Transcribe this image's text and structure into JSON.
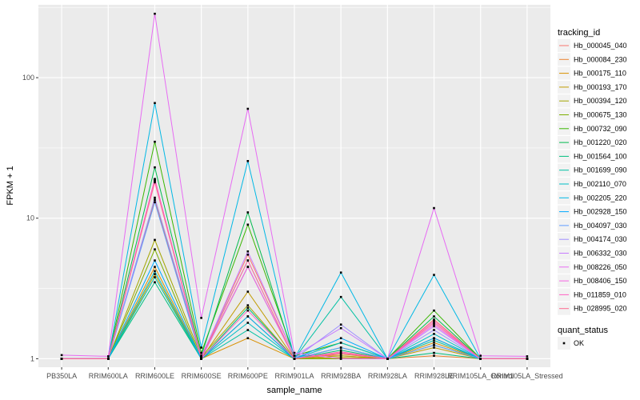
{
  "chart_data": {
    "type": "line",
    "title": "",
    "xlabel": "sample_name",
    "ylabel": "FPKM + 1",
    "y_scale": "log10",
    "ylim": [
      0.87,
      330
    ],
    "y_ticks": [
      1,
      10,
      100
    ],
    "y_tick_labels": [
      "1",
      "10",
      "100"
    ],
    "grid": true,
    "panel_background": "#ebebeb",
    "gridline_color": "#ffffff",
    "legend_position": "right",
    "categories": [
      "PB350LA",
      "RRIM600LA",
      "RRIM600LE",
      "RRIM600SE",
      "RRIM600PE",
      "RRIM901LA",
      "RRIM928BA",
      "RRIM928LA",
      "RRIM928LE",
      "RRIM105LA_Control",
      "RRIM105LA_Stressed"
    ],
    "legend_title": "tracking_id",
    "series": [
      {
        "name": "Hb_000045_040",
        "color": "#F8766D",
        "values": [
          1.0,
          1.0,
          18.5,
          1.03,
          5.5,
          1.05,
          1.05,
          1.0,
          1.9,
          1.0,
          1.0
        ]
      },
      {
        "name": "Hb_000084_230",
        "color": "#EA8331",
        "values": [
          1.0,
          1.0,
          13.5,
          1.02,
          4.5,
          1.0,
          1.08,
          1.0,
          1.05,
          1.0,
          1.0
        ]
      },
      {
        "name": "Hb_000175_110",
        "color": "#D89000",
        "values": [
          1.0,
          1.0,
          4.5,
          1.0,
          1.4,
          1.0,
          1.0,
          1.0,
          1.3,
          1.0,
          1.0
        ]
      },
      {
        "name": "Hb_000193_170",
        "color": "#C09B00",
        "values": [
          1.0,
          1.0,
          4.0,
          1.0,
          3.0,
          1.0,
          1.02,
          1.0,
          1.2,
          1.0,
          1.0
        ]
      },
      {
        "name": "Hb_000394_120",
        "color": "#A3A500",
        "values": [
          1.0,
          1.0,
          7.0,
          1.03,
          2.4,
          1.0,
          1.05,
          1.0,
          1.4,
          1.0,
          1.0
        ]
      },
      {
        "name": "Hb_000675_130",
        "color": "#7CAE00",
        "values": [
          1.0,
          1.0,
          6.0,
          1.0,
          2.0,
          1.0,
          1.0,
          1.0,
          1.25,
          1.0,
          1.0
        ]
      },
      {
        "name": "Hb_000732_090",
        "color": "#39B600",
        "values": [
          1.0,
          1.0,
          35.0,
          1.1,
          9.0,
          1.05,
          1.3,
          1.0,
          2.2,
          1.0,
          1.0
        ]
      },
      {
        "name": "Hb_001220_020",
        "color": "#00BB4E",
        "values": [
          1.0,
          1.0,
          23.0,
          1.05,
          11.0,
          1.0,
          1.2,
          1.0,
          2.0,
          1.0,
          1.0
        ]
      },
      {
        "name": "Hb_001564_100",
        "color": "#00BF7D",
        "values": [
          1.0,
          1.0,
          3.5,
          1.0,
          2.3,
          1.0,
          1.15,
          1.0,
          1.1,
          1.0,
          1.0
        ]
      },
      {
        "name": "Hb_001699_090",
        "color": "#00C1A3",
        "values": [
          1.0,
          1.0,
          3.8,
          1.0,
          1.6,
          1.0,
          2.75,
          1.0,
          1.35,
          1.0,
          1.0
        ]
      },
      {
        "name": "Hb_002110_070",
        "color": "#00BFC4",
        "values": [
          1.0,
          1.0,
          4.2,
          1.0,
          1.8,
          1.0,
          1.3,
          1.0,
          1.5,
          1.0,
          1.0
        ]
      },
      {
        "name": "Hb_002205_220",
        "color": "#00B8E5",
        "values": [
          1.0,
          1.0,
          66.0,
          1.2,
          25.5,
          1.0,
          4.1,
          1.0,
          3.95,
          1.0,
          1.0
        ]
      },
      {
        "name": "Hb_002928_150",
        "color": "#00A9FF",
        "values": [
          1.0,
          1.0,
          5.0,
          1.0,
          2.0,
          1.0,
          1.4,
          1.0,
          1.4,
          1.0,
          1.0
        ]
      },
      {
        "name": "Hb_004097_030",
        "color": "#619CFF",
        "values": [
          1.0,
          1.0,
          13.0,
          1.0,
          4.5,
          1.0,
          1.2,
          1.0,
          1.25,
          1.0,
          1.0
        ]
      },
      {
        "name": "Hb_004174_030",
        "color": "#9F8FFF",
        "values": [
          1.0,
          1.0,
          14.0,
          1.05,
          5.0,
          1.0,
          1.75,
          1.0,
          1.6,
          1.0,
          1.0
        ]
      },
      {
        "name": "Hb_006332_030",
        "color": "#C77CFF",
        "values": [
          1.0,
          1.0,
          19.0,
          1.02,
          5.8,
          1.05,
          1.65,
          1.0,
          1.7,
          1.0,
          1.0
        ]
      },
      {
        "name": "Hb_008226_050",
        "color": "#E76BF3",
        "values": [
          1.06,
          1.04,
          285.0,
          1.95,
          60.0,
          1.1,
          1.0,
          1.0,
          11.8,
          1.05,
          1.04
        ]
      },
      {
        "name": "Hb_008406_150",
        "color": "#F564E3",
        "values": [
          1.0,
          1.0,
          18.5,
          1.0,
          4.5,
          1.0,
          1.1,
          1.0,
          1.75,
          1.0,
          1.0
        ]
      },
      {
        "name": "Hb_011859_010",
        "color": "#FF61C3",
        "values": [
          1.0,
          1.0,
          19.0,
          1.0,
          2.2,
          1.0,
          1.1,
          1.0,
          1.85,
          1.0,
          1.0
        ]
      },
      {
        "name": "Hb_028995_020",
        "color": "#FF6C91",
        "values": [
          1.0,
          1.0,
          18.0,
          1.02,
          5.0,
          1.0,
          1.12,
          1.0,
          1.8,
          1.0,
          1.0
        ]
      }
    ],
    "shape_legend": {
      "title": "quant_status",
      "items": [
        {
          "label": "OK",
          "shape": "square-point",
          "color": "#000000"
        }
      ]
    }
  }
}
